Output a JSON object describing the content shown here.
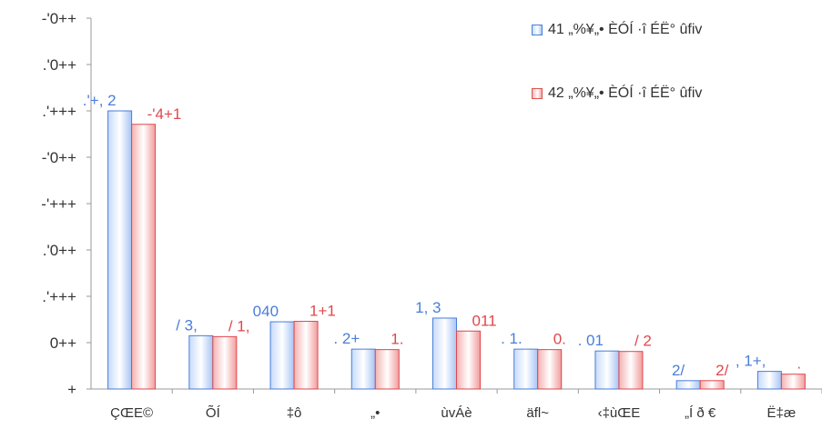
{
  "chart_data": {
    "type": "bar",
    "categories": [
      "ÇŒE©",
      "ÕÍ",
      "‡ô",
      "„•",
      "ùvÁè",
      "äfl~",
      "‹‡ùŒE",
      "„Í ð €",
      "Ë‡æ"
    ],
    "series": [
      {
        "name": "41 „%¥„• ÈÓÍ ·î ÉË° ûfiv",
        "color": "#4a7ed9",
        "values": [
          6000,
          1150,
          1450,
          860,
          1530,
          860,
          820,
          180,
          380
        ],
        "labels": [
          ".'+, 2",
          "/ 3,",
          "040",
          ". 2+",
          "1, 3",
          ". 1.",
          ". 01",
          "2/",
          ", 1+,"
        ]
      },
      {
        "name": "42 „%¥„• ÈÓÍ ·î ÉË° ûfiv",
        "color": "#e0474c",
        "values": [
          5710,
          1130,
          1460,
          850,
          1250,
          850,
          810,
          180,
          320
        ],
        "labels": [
          "-'4+1",
          "/ 1,",
          "1+1",
          "1.",
          "011",
          "0.",
          "/ 2",
          "2/",
          "."
        ]
      }
    ],
    "ylim": [
      0,
      8000
    ],
    "yticks": [
      0,
      1000,
      2000,
      3000,
      4000,
      5000,
      6000,
      7000,
      8000
    ],
    "ytick_labels": [
      "+",
      "0++",
      ".'+++",
      ".'0++",
      "-'+++",
      "-'0++",
      ".'+++",
      ".'0++",
      "-'0++"
    ],
    "title": "",
    "xlabel": "",
    "ylabel": "",
    "grid": false,
    "legend_position": "top-right"
  }
}
